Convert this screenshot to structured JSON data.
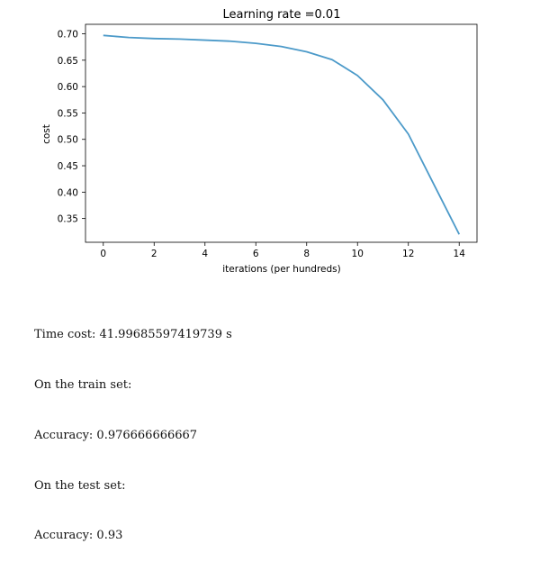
{
  "chart_data": {
    "type": "line",
    "title": "Learning rate =0.01",
    "xlabel": "iterations (per hundreds)",
    "ylabel": "cost",
    "xlim": [
      -0.7,
      14.7
    ],
    "ylim": [
      0.305,
      0.718
    ],
    "xticks": [
      0,
      2,
      4,
      6,
      8,
      10,
      12,
      14
    ],
    "xtick_labels": [
      "0",
      "2",
      "4",
      "6",
      "8",
      "10",
      "12",
      "14"
    ],
    "yticks": [
      0.35,
      0.4,
      0.45,
      0.5,
      0.55,
      0.6,
      0.65,
      0.7
    ],
    "ytick_labels": [
      "0.35",
      "0.40",
      "0.45",
      "0.50",
      "0.55",
      "0.60",
      "0.65",
      "0.70"
    ],
    "grid": false,
    "color": "#4c9ac9",
    "series": [
      {
        "x": [
          0,
          1,
          2,
          3,
          4,
          5,
          6,
          7,
          8,
          9,
          10,
          11,
          12,
          13,
          14
        ],
        "values": [
          0.697,
          0.693,
          0.691,
          0.69,
          0.688,
          0.686,
          0.682,
          0.676,
          0.666,
          0.651,
          0.621,
          0.575,
          0.51,
          0.415,
          0.32
        ]
      }
    ]
  },
  "output": {
    "lines": [
      "Time cost: 41.99685597419739 s",
      "On the train set:",
      "Accuracy: 0.976666666667",
      "On the test set:",
      "Accuracy: 0.93"
    ]
  }
}
